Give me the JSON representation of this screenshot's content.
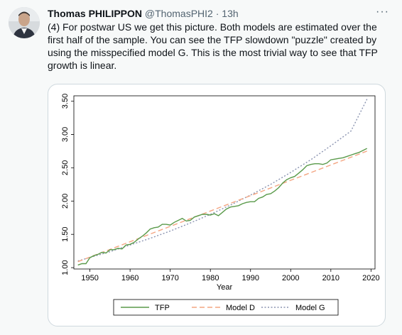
{
  "tweet": {
    "author_name": "Thomas PHILIPPON",
    "author_handle": "@ThomasPHI2",
    "separator": "·",
    "time": "13h",
    "more_icon": "more-horizontal-icon",
    "text": "(4) For postwar US we get this picture. Both models are estimated over the first half of the sample. You can see the TFP slowdown \"puzzle\" created by using the misspecified model G. This is the most trivial way to see that TFP growth is linear."
  },
  "chart_data": {
    "type": "line",
    "title": "",
    "xlabel": "Year",
    "ylabel": "",
    "xlim": [
      1946,
      2021
    ],
    "ylim": [
      0.98,
      3.58
    ],
    "x_ticks": [
      1950,
      1960,
      1970,
      1980,
      1990,
      2000,
      2010,
      2020
    ],
    "x_tick_labels": [
      "1950",
      "1960",
      "1970",
      "1980",
      "1990",
      "2000",
      "2010",
      "2020"
    ],
    "y_ticks": [
      1.0,
      1.5,
      2.0,
      2.5,
      3.0,
      3.5
    ],
    "y_tick_labels": [
      "1.00",
      "1.50",
      "2.00",
      "2.50",
      "3.00",
      "3.50"
    ],
    "grid": false,
    "legend_position": "bottom",
    "series": [
      {
        "name": "TFP",
        "color": "#5a9a4a",
        "style": "solid",
        "x": [
          1947,
          1948,
          1949,
          1950,
          1951,
          1952,
          1953,
          1954,
          1955,
          1956,
          1957,
          1958,
          1959,
          1960,
          1961,
          1962,
          1963,
          1964,
          1965,
          1966,
          1967,
          1968,
          1969,
          1970,
          1971,
          1972,
          1973,
          1974,
          1975,
          1976,
          1977,
          1978,
          1979,
          1980,
          1981,
          1982,
          1983,
          1984,
          1985,
          1986,
          1987,
          1988,
          1989,
          1990,
          1991,
          1992,
          1993,
          1994,
          1995,
          1996,
          1997,
          1998,
          1999,
          2000,
          2001,
          2002,
          2003,
          2004,
          2005,
          2006,
          2007,
          2008,
          2009,
          2010,
          2011,
          2012,
          2013,
          2014,
          2015,
          2016,
          2017,
          2018,
          2019
        ],
        "values": [
          1.04,
          1.06,
          1.06,
          1.15,
          1.18,
          1.2,
          1.23,
          1.22,
          1.27,
          1.27,
          1.29,
          1.28,
          1.34,
          1.35,
          1.38,
          1.43,
          1.47,
          1.52,
          1.58,
          1.6,
          1.61,
          1.65,
          1.65,
          1.64,
          1.68,
          1.71,
          1.74,
          1.7,
          1.71,
          1.76,
          1.78,
          1.8,
          1.8,
          1.79,
          1.81,
          1.78,
          1.83,
          1.88,
          1.91,
          1.92,
          1.93,
          1.96,
          1.98,
          1.99,
          1.99,
          2.04,
          2.06,
          2.1,
          2.11,
          2.15,
          2.2,
          2.27,
          2.32,
          2.35,
          2.37,
          2.42,
          2.47,
          2.53,
          2.55,
          2.56,
          2.56,
          2.55,
          2.57,
          2.62,
          2.63,
          2.64,
          2.65,
          2.67,
          2.69,
          2.71,
          2.73,
          2.76,
          2.79
        ]
      },
      {
        "name": "Model D",
        "color": "#f4a582",
        "style": "dashed",
        "x": [
          1947,
          2019
        ],
        "values": [
          1.09,
          2.75
        ]
      },
      {
        "name": "Model G",
        "color": "#8a93b0",
        "style": "dotted",
        "x": [
          1947,
          1955,
          1960,
          1965,
          1970,
          1975,
          1980,
          1985,
          1990,
          1995,
          2000,
          2005,
          2010,
          2015,
          2019
        ],
        "values": [
          1.1,
          1.24,
          1.34,
          1.44,
          1.55,
          1.67,
          1.8,
          1.94,
          2.09,
          2.25,
          2.43,
          2.62,
          2.83,
          3.05,
          3.53
        ]
      }
    ]
  }
}
